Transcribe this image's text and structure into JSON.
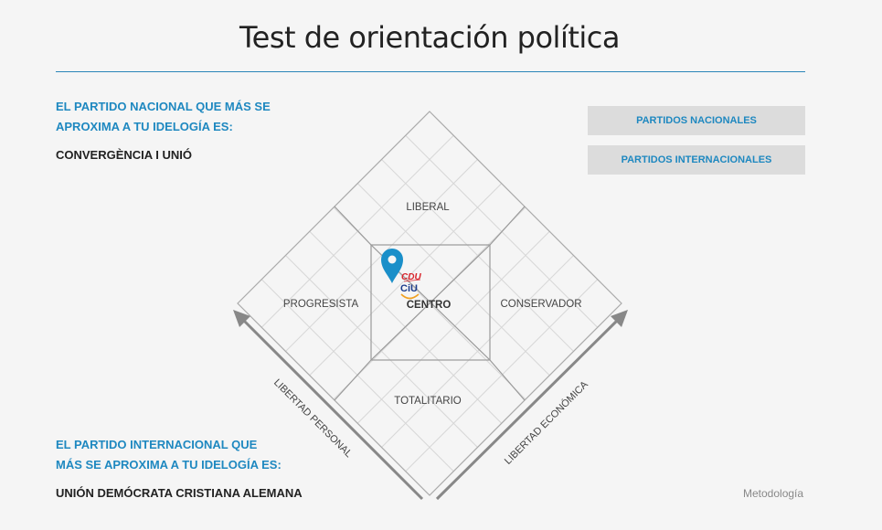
{
  "title": "Test de orientación política",
  "national": {
    "heading_line1": "EL PARTIDO NACIONAL QUE MÁS SE",
    "heading_line2": "APROXIMA A TU IDELOGÍA ES:",
    "party": "CONVERGÈNCIA I UNIÓ"
  },
  "international": {
    "heading_line1": "EL PARTIDO INTERNACIONAL QUE",
    "heading_line2": "MÁS SE APROXIMA A TU IDELOGÍA ES:",
    "party": "UNIÓN DEMÓCRATA CRISTIANA ALEMANA"
  },
  "buttons": {
    "national": "PARTIDOS NACIONALES",
    "international": "PARTIDOS INTERNACIONALES"
  },
  "chart": {
    "zones": {
      "liberal": "LIBERAL",
      "progresista": "PROGRESISTA",
      "centro": "CENTRO",
      "conservador": "CONSERVADOR",
      "totalitario": "TOTALITARIO"
    },
    "axes": {
      "personal": "LIBERTAD PERSONAL",
      "economica": "LIBERTAD ECONÓMICA"
    },
    "logos": {
      "cdu": "CDU",
      "ciu": "CiU"
    },
    "marker_color": "#1a8fc9"
  },
  "footer": {
    "metodologia": "Metodología"
  }
}
